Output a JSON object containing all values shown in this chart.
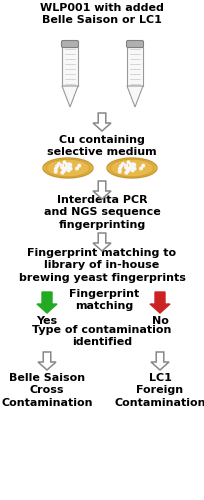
{
  "background_color": "#ffffff",
  "title_text": "WLP001 with added\nBelle Saison or LC1",
  "cu_text": "Cu containing\nselective medium",
  "pcr_text": "Interdelta PCR\nand NGS sequence\nfingerprinting",
  "fingerprint_text": "Fingerprint matching to\nlibrary of in-house\nbrewing yeast fingerprints",
  "fp_matching_text": "Fingerprint\nmatching",
  "yes_text": "Yes",
  "no_text": "No",
  "type_text": "Type of contamination\nidentified",
  "belle_text": "Belle Saison\nCross\nContamination",
  "lc1_text": "LC1\nForeign\nContamination",
  "arrow_fill": "#ffffff",
  "arrow_edge": "#888888",
  "green_arrow": "#22aa22",
  "red_arrow": "#cc2222",
  "tube_body": "#f8f8f8",
  "tube_cap": "#aaaaaa",
  "tube_line": "#999999",
  "plate_fill": "#e8b84b",
  "plate_edge": "#c89a30",
  "colony_color": "#f8e090",
  "text_color": "#000000",
  "fontsize": 7.5,
  "fontweight": "bold"
}
